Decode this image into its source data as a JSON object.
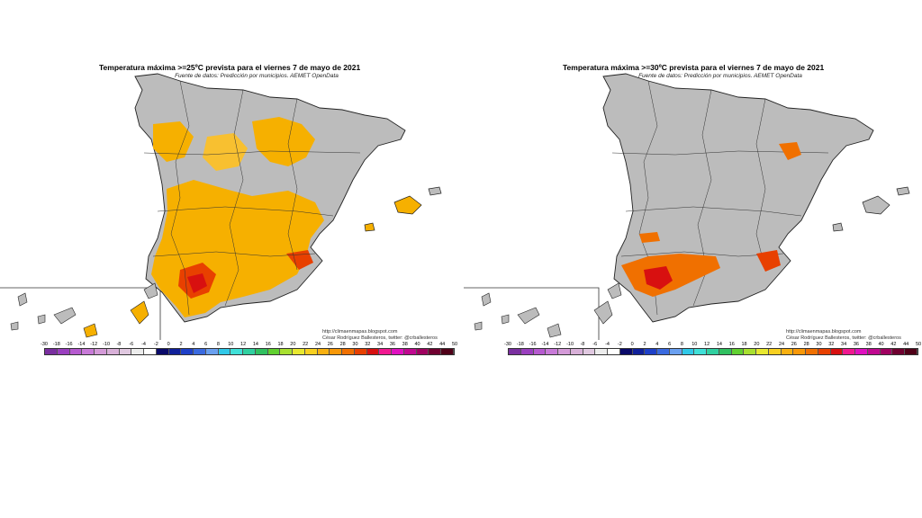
{
  "maps": [
    {
      "title": "Temperatura máxima >=25ºC prevista para el viernes 7 de mayo de 2021",
      "subtitle": "Fuente de datos: Predicción por municipios. AEMET OpenData",
      "credit_url": "http://climaenmapas.blogspot.com",
      "credit_author": "César Rodríguez Ballesteros, twitter: @crballesteros",
      "threshold_c": 25
    },
    {
      "title": "Temperatura máxima >=30ºC prevista para el viernes 7 de mayo de 2021",
      "subtitle": "Fuente de datos: Predicción por municipios. AEMET OpenData",
      "credit_url": "http://climaenmapas.blogspot.com",
      "credit_author": "César Rodríguez Ballesteros, twitter: @crballesteros",
      "threshold_c": 30
    }
  ],
  "legend": {
    "ticks": [
      "-30",
      "-18",
      "-16",
      "-14",
      "-12",
      "-10",
      "-8",
      "-6",
      "-4",
      "-2",
      "0",
      "2",
      "4",
      "6",
      "8",
      "10",
      "12",
      "14",
      "16",
      "18",
      "20",
      "22",
      "24",
      "26",
      "28",
      "30",
      "32",
      "34",
      "36",
      "38",
      "40",
      "42",
      "44",
      "50"
    ],
    "colors": [
      "#7a2fa0",
      "#9a3fbf",
      "#b65ad0",
      "#c87ad8",
      "#d49ad8",
      "#d8b0d8",
      "#e0c8e0",
      "#ececec",
      "#ffffff",
      "#0a0a6a",
      "#10209a",
      "#1e40c8",
      "#3a6ae0",
      "#6aa0f0",
      "#30c8e8",
      "#40e0d8",
      "#30d0a0",
      "#30c060",
      "#60d030",
      "#a8e030",
      "#e8e830",
      "#f8d020",
      "#f8b010",
      "#f89808",
      "#f07000",
      "#e84000",
      "#d81010",
      "#f01890",
      "#e010c0",
      "#c00890",
      "#a00060",
      "#700030",
      "#500018"
    ]
  }
}
